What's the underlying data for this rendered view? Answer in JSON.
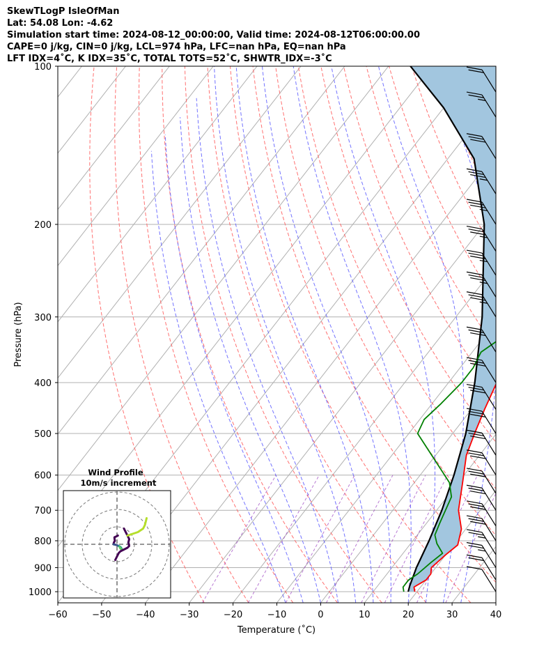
{
  "header": {
    "line1": "SkewTLogP IsleOfMan",
    "line2": "Lat: 54.08   Lon: -4.62",
    "line3": "Simulation start time: 2024-08-12_00:00:00, Valid time: 2024-08-12T06:00:00.00",
    "line4": "CAPE=0 j/kg, CIN=0 j/kg, LCL=974 hPa, LFC=nan hPa, EQ=nan hPa",
    "line5": "LFT IDX=4˚C, K IDX=35˚C, TOTAL TOTS=52˚C, SHWTR_IDX=-3˚C"
  },
  "chart_data": {
    "type": "line",
    "subtype": "skew-T log-P",
    "xlabel": "Temperature (˚C)",
    "ylabel": "Pressure (hPa)",
    "xlim": [
      -60,
      40
    ],
    "ylim": [
      1050,
      100
    ],
    "y_scale": "log",
    "x_ticks": [
      -60,
      -50,
      -40,
      -30,
      -20,
      -10,
      0,
      10,
      20,
      30,
      40
    ],
    "y_ticks": [
      1000,
      900,
      800,
      700,
      600,
      500,
      400,
      300,
      200,
      100
    ],
    "grid": true,
    "colors": {
      "temperature": "#ff0000",
      "dewpoint": "#008000",
      "parcel": "#000000",
      "cape_fill": "#a2c6df",
      "dry_adiabats": "#ff6060",
      "moist_adiabats": "#5a5aff",
      "mixing_ratio": "#9a40c0",
      "isotherms": "#b0b0b0",
      "barbs": "#000000"
    },
    "series": [
      {
        "name": "temperature",
        "points": [
          [
            19.5,
            1000
          ],
          [
            18.5,
            980
          ],
          [
            20,
            950
          ],
          [
            20,
            925
          ],
          [
            19,
            900
          ],
          [
            20,
            850
          ],
          [
            21,
            815
          ],
          [
            19,
            760
          ],
          [
            15,
            700
          ],
          [
            11,
            620
          ],
          [
            7,
            550
          ],
          [
            5,
            500
          ],
          [
            3,
            450
          ],
          [
            1,
            400
          ],
          [
            -2,
            350
          ],
          [
            -5,
            300
          ],
          [
            -8,
            275
          ],
          [
            -9,
            250
          ],
          [
            -9,
            220
          ],
          [
            -8,
            200
          ],
          [
            -6,
            185
          ],
          [
            -3,
            170
          ],
          [
            1,
            150
          ],
          [
            2,
            140
          ],
          [
            3,
            130
          ],
          [
            4,
            120
          ],
          [
            6,
            110
          ],
          [
            11,
            100
          ]
        ]
      },
      {
        "name": "dewpoint",
        "points": [
          [
            17,
            1000
          ],
          [
            16,
            980
          ],
          [
            16,
            950
          ],
          [
            17,
            925
          ],
          [
            18,
            880
          ],
          [
            19,
            845
          ],
          [
            16,
            810
          ],
          [
            14,
            780
          ],
          [
            13,
            740
          ],
          [
            11,
            660
          ],
          [
            8,
            620
          ],
          [
            -8,
            500
          ],
          [
            -9,
            470
          ],
          [
            -8,
            440
          ],
          [
            -7,
            400
          ],
          [
            -7,
            375
          ],
          [
            -8,
            350
          ],
          [
            -6,
            330
          ],
          [
            -5,
            300
          ],
          [
            -7,
            275
          ],
          [
            -9,
            250
          ],
          [
            -10,
            235
          ],
          [
            -11,
            220
          ],
          [
            -14,
            200
          ],
          [
            -18,
            185
          ],
          [
            -22,
            175
          ],
          [
            -25,
            165
          ],
          [
            -24,
            150
          ],
          [
            -20,
            130
          ],
          [
            -18,
            115
          ],
          [
            -16,
            100
          ]
        ]
      },
      {
        "name": "parcel",
        "points": [
          [
            18,
            1000
          ],
          [
            17.3,
            974
          ],
          [
            15.6,
            900
          ],
          [
            13.7,
            800
          ],
          [
            11.2,
            700
          ],
          [
            7.7,
            600
          ],
          [
            3,
            500
          ],
          [
            -4,
            400
          ],
          [
            -14,
            300
          ],
          [
            -30,
            200
          ],
          [
            -44,
            150
          ],
          [
            -60,
            120
          ],
          [
            -75,
            100
          ]
        ]
      }
    ],
    "wind_barbs": [
      {
        "p": 1000,
        "spd_kt": 10
      },
      {
        "p": 950,
        "spd_kt": 20
      },
      {
        "p": 900,
        "spd_kt": 25
      },
      {
        "p": 850,
        "spd_kt": 25
      },
      {
        "p": 800,
        "spd_kt": 30
      },
      {
        "p": 750,
        "spd_kt": 30
      },
      {
        "p": 700,
        "spd_kt": 30
      },
      {
        "p": 650,
        "spd_kt": 30
      },
      {
        "p": 600,
        "spd_kt": 30
      },
      {
        "p": 550,
        "spd_kt": 30
      },
      {
        "p": 500,
        "spd_kt": 30
      },
      {
        "p": 450,
        "spd_kt": 30
      },
      {
        "p": 400,
        "spd_kt": 30
      },
      {
        "p": 350,
        "spd_kt": 30
      },
      {
        "p": 300,
        "spd_kt": 35
      },
      {
        "p": 275,
        "spd_kt": 35
      },
      {
        "p": 250,
        "spd_kt": 35
      },
      {
        "p": 225,
        "spd_kt": 35
      },
      {
        "p": 200,
        "spd_kt": 35
      },
      {
        "p": 175,
        "spd_kt": 35
      },
      {
        "p": 150,
        "spd_kt": 30
      },
      {
        "p": 125,
        "spd_kt": 25
      },
      {
        "p": 112,
        "spd_kt": 20
      }
    ],
    "inset": {
      "title": "Wind Profile",
      "subtitle": "10m/s increment",
      "type": "hodograph",
      "rings_ms": [
        10,
        20,
        30
      ],
      "segments": [
        {
          "color": "#440154",
          "points": [
            [
              0.5,
              5
            ],
            [
              -0.5,
              4.5
            ],
            [
              -1.5,
              4
            ],
            [
              -1.4,
              3
            ],
            [
              -1.2,
              2
            ],
            [
              -1.8,
              1
            ],
            [
              -2,
              0
            ]
          ]
        },
        {
          "color": "#3b528b",
          "points": [
            [
              -2,
              0
            ],
            [
              0,
              -0.5
            ],
            [
              1,
              -1
            ]
          ]
        },
        {
          "color": "#21918c",
          "points": [
            [
              1,
              -1
            ],
            [
              2,
              -1.5
            ],
            [
              3,
              -3
            ]
          ]
        },
        {
          "color": "#5ec962",
          "points": [
            [
              3,
              -3
            ],
            [
              2,
              -2.5
            ],
            [
              1.5,
              -1.5
            ]
          ]
        },
        {
          "color": "#440154",
          "points": [
            [
              -1,
              -9
            ],
            [
              0,
              -7
            ],
            [
              1,
              -5
            ],
            [
              2,
              -4
            ],
            [
              4,
              -3
            ],
            [
              6,
              -2
            ],
            [
              7,
              -1
            ],
            [
              6.5,
              1
            ],
            [
              7,
              3
            ],
            [
              6,
              5
            ],
            [
              5,
              7
            ],
            [
              4,
              9
            ]
          ]
        },
        {
          "color": "#b5de2b",
          "points": [
            [
              6,
              5
            ],
            [
              9,
              6
            ],
            [
              12,
              7
            ],
            [
              15,
              9
            ],
            [
              16,
              11
            ],
            [
              16.5,
              13
            ],
            [
              17,
              15
            ]
          ]
        }
      ]
    }
  }
}
